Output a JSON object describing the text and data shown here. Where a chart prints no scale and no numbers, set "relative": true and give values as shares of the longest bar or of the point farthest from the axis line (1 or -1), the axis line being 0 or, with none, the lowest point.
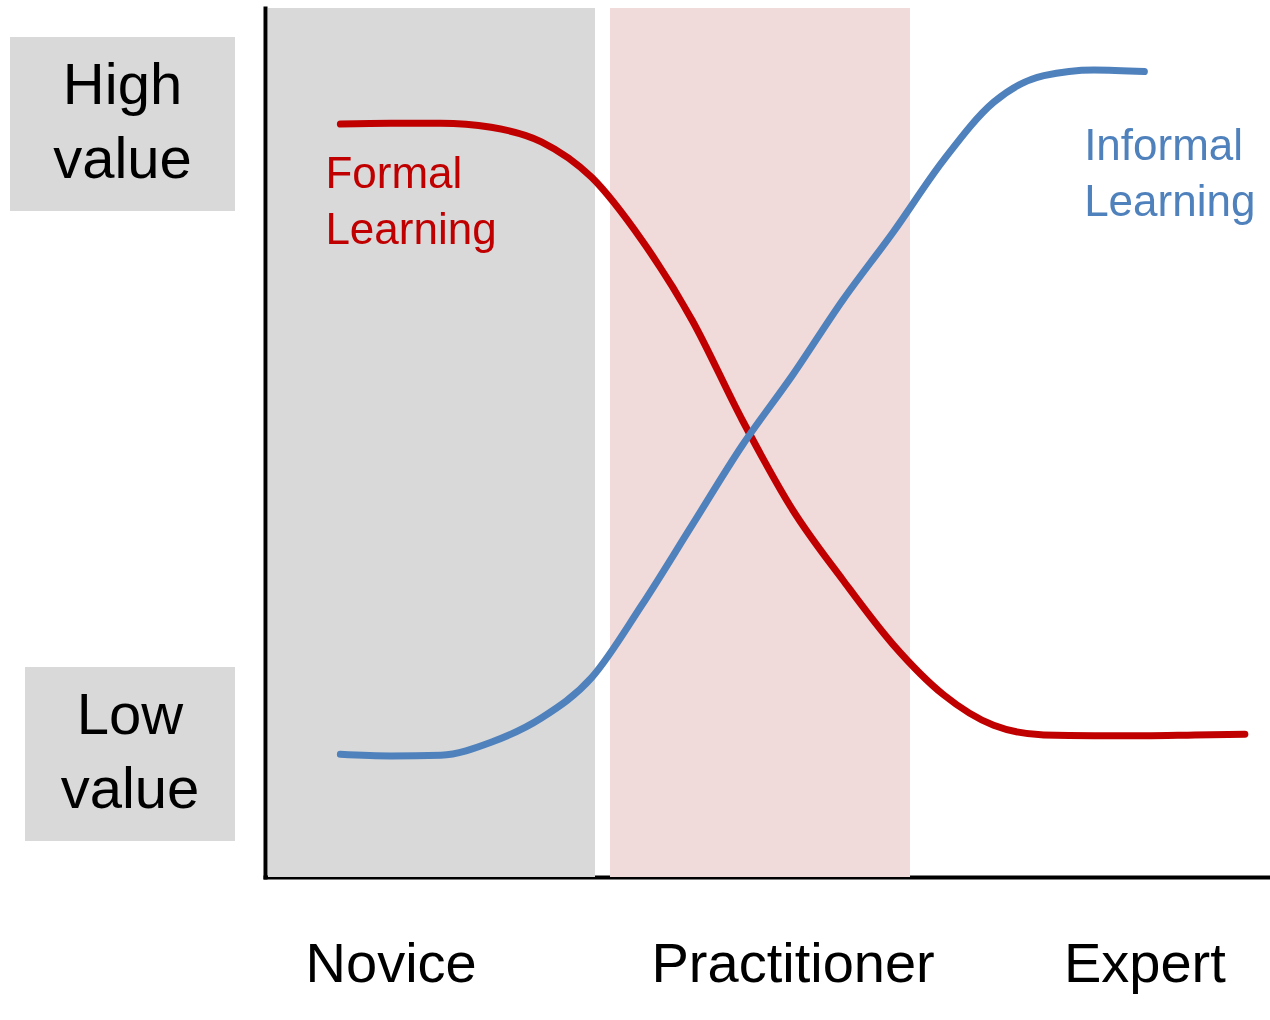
{
  "chart_data": {
    "type": "line",
    "relative": true,
    "categories": [
      null,
      null,
      "Novice",
      null,
      null,
      null,
      null,
      null,
      null,
      null,
      "Practitioner",
      null,
      null,
      null,
      null,
      null,
      null,
      "Expert",
      null,
      null
    ],
    "grid": false,
    "marker": "none",
    "line_style": "solid",
    "annotations": [
      "High value",
      "Low value"
    ],
    "series": [
      {
        "name": "Formal Learning",
        "color": "#c00000",
        "values": [
          null,
          0.933,
          0.934,
          0.934,
          0.929,
          0.911,
          0.867,
          0.789,
          0.69,
          0.566,
          0.455,
          0.368,
          0.288,
          0.226,
          0.188,
          0.176,
          0.175,
          0.175,
          0.176,
          0.177
        ]
      },
      {
        "name": "Informal Learning",
        "color": "#4f81bd",
        "values": [
          null,
          0.152,
          0.15,
          0.151,
          0.167,
          0.197,
          0.247,
          0.337,
          0.436,
          0.535,
          0.622,
          0.715,
          0.799,
          0.888,
          0.96,
          0.993,
          1.0,
          0.998,
          null,
          null
        ]
      }
    ]
  }
}
